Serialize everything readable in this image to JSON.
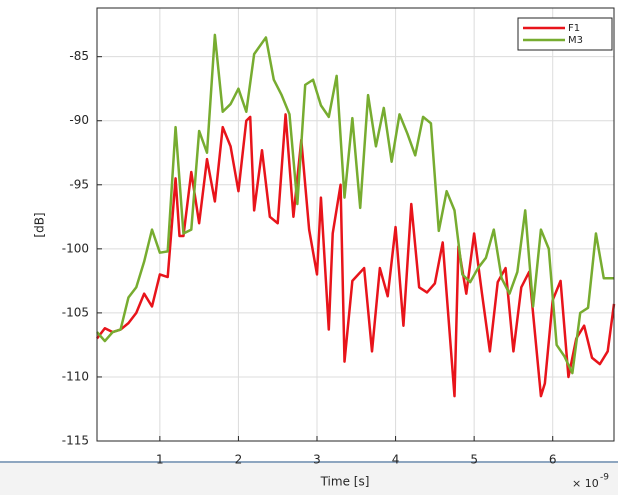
{
  "chart_data": {
    "type": "line",
    "xlabel": "Time [s]",
    "ylabel": "[dB]",
    "x_scale_label": {
      "base": "× 10",
      "exponent": "-9"
    },
    "xlim": [
      0.2,
      6.78
    ],
    "ylim": [
      -115,
      -81.2
    ],
    "xticks": [
      1,
      2,
      3,
      4,
      5,
      6
    ],
    "yticks": [
      -115,
      -110,
      -105,
      -100,
      -95,
      -90,
      -85
    ],
    "grid": true,
    "legend": "upper right",
    "series": [
      {
        "name": "F1",
        "color": "#e8141b",
        "x": [
          0.2,
          0.3,
          0.4,
          0.5,
          0.6,
          0.7,
          0.8,
          0.9,
          1.0,
          1.1,
          1.2,
          1.25,
          1.3,
          1.4,
          1.5,
          1.6,
          1.7,
          1.8,
          1.9,
          2.0,
          2.1,
          2.15,
          2.2,
          2.3,
          2.4,
          2.5,
          2.6,
          2.7,
          2.8,
          2.9,
          3.0,
          3.05,
          3.15,
          3.2,
          3.3,
          3.35,
          3.45,
          3.6,
          3.7,
          3.8,
          3.9,
          4.0,
          4.1,
          4.2,
          4.3,
          4.4,
          4.5,
          4.6,
          4.75,
          4.8,
          4.9,
          5.0,
          5.1,
          5.2,
          5.3,
          5.4,
          5.5,
          5.6,
          5.7,
          5.85,
          5.9,
          6.0,
          6.1,
          6.2,
          6.3,
          6.4,
          6.5,
          6.6,
          6.7,
          6.78
        ],
        "values": [
          -107,
          -106.2,
          -106.5,
          -106.3,
          -105.8,
          -105,
          -103.5,
          -104.5,
          -102,
          -102.2,
          -94.5,
          -99,
          -99,
          -94,
          -98,
          -93,
          -96.3,
          -90.5,
          -92,
          -95.5,
          -90,
          -89.7,
          -97,
          -92.3,
          -97.5,
          -98,
          -89.5,
          -97.5,
          -91.5,
          -98.5,
          -102,
          -96,
          -106.3,
          -98.8,
          -95,
          -108.8,
          -102.5,
          -101.5,
          -108,
          -101.5,
          -103.7,
          -98.3,
          -106,
          -96.5,
          -103,
          -103.4,
          -102.7,
          -99.5,
          -111.5,
          -99.8,
          -103.5,
          -98.8,
          -103.5,
          -108,
          -102.6,
          -101.5,
          -108,
          -103,
          -101.8,
          -111.5,
          -110.5,
          -104,
          -102.5,
          -110,
          -107,
          -106,
          -108.5,
          -109,
          -108,
          -104.3
        ]
      },
      {
        "name": "M3",
        "color": "#77ac30",
        "x": [
          0.2,
          0.3,
          0.4,
          0.5,
          0.6,
          0.7,
          0.8,
          0.9,
          1.0,
          1.1,
          1.2,
          1.3,
          1.4,
          1.5,
          1.6,
          1.7,
          1.8,
          1.9,
          2.0,
          2.1,
          2.2,
          2.35,
          2.45,
          2.55,
          2.65,
          2.75,
          2.85,
          2.95,
          3.05,
          3.15,
          3.25,
          3.35,
          3.45,
          3.55,
          3.65,
          3.75,
          3.85,
          3.95,
          4.05,
          4.15,
          4.25,
          4.35,
          4.45,
          4.55,
          4.65,
          4.75,
          4.85,
          4.95,
          5.05,
          5.15,
          5.25,
          5.35,
          5.45,
          5.55,
          5.65,
          5.75,
          5.85,
          5.95,
          6.05,
          6.15,
          6.25,
          6.35,
          6.45,
          6.55,
          6.65,
          6.78
        ],
        "values": [
          -106.5,
          -107.2,
          -106.5,
          -106.3,
          -103.8,
          -103,
          -101,
          -98.5,
          -100.3,
          -100.2,
          -90.5,
          -98.8,
          -98.5,
          -90.8,
          -92.5,
          -83.3,
          -89.3,
          -88.7,
          -87.5,
          -89.3,
          -84.8,
          -83.5,
          -86.8,
          -88,
          -89.5,
          -96.5,
          -87.2,
          -86.8,
          -88.8,
          -89.7,
          -86.5,
          -96,
          -89.8,
          -96.8,
          -88,
          -92,
          -89,
          -93.2,
          -89.5,
          -91,
          -92.7,
          -89.7,
          -90.2,
          -98.6,
          -95.5,
          -97,
          -102,
          -102.6,
          -101.5,
          -100.7,
          -98.5,
          -102.3,
          -103.5,
          -101.8,
          -97,
          -104.5,
          -98.5,
          -100,
          -107.5,
          -108.4,
          -109.7,
          -105,
          -104.6,
          -98.8,
          -102.3,
          -102.3
        ]
      }
    ]
  }
}
